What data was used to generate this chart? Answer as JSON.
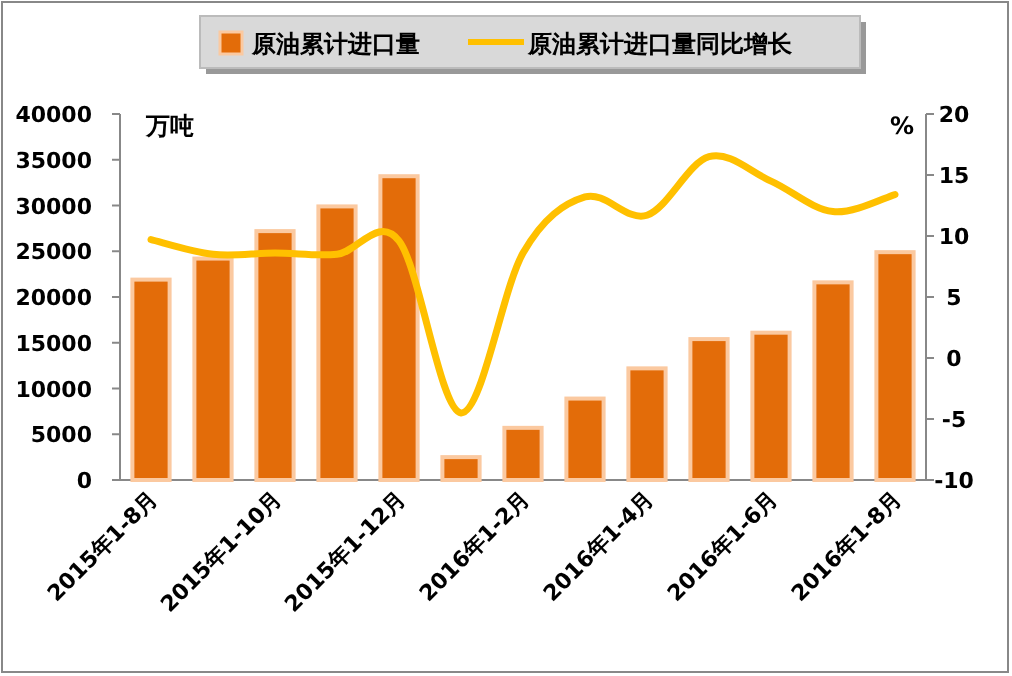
{
  "chart_data": {
    "type": "bar",
    "categories": [
      "2015年1-8月",
      null,
      "2015年1-10月",
      null,
      "2015年1-12月",
      null,
      "2016年1-2月",
      null,
      "2016年1-4月",
      null,
      "2016年1-6月",
      null,
      "2016年1-8月"
    ],
    "series": [
      {
        "name": "原油累计进口量",
        "color": "#e36c09",
        "values": [
          21900,
          24200,
          27200,
          29900,
          33200,
          2500,
          5700,
          8900,
          12200,
          15400,
          16100,
          21600,
          24900
        ]
      },
      {
        "name": "原油累计进口量同比增长",
        "type": "line",
        "axis": "y2",
        "color": "#ffc000",
        "values": [
          9.7,
          8.5,
          8.6,
          8.5,
          9.6,
          -4.5,
          8.6,
          13.2,
          11.7,
          16.5,
          14.5,
          12.0,
          13.4
        ]
      }
    ],
    "ylabel": "万吨",
    "y2label": "%",
    "ylim": [
      0,
      40000
    ],
    "yticks": [
      0,
      5000,
      10000,
      15000,
      20000,
      25000,
      30000,
      35000,
      40000
    ],
    "y2lim": [
      -10,
      20
    ],
    "y2ticks": [
      -10,
      -5,
      0,
      5,
      10,
      15,
      20
    ],
    "legend": "top",
    "grid": false
  }
}
